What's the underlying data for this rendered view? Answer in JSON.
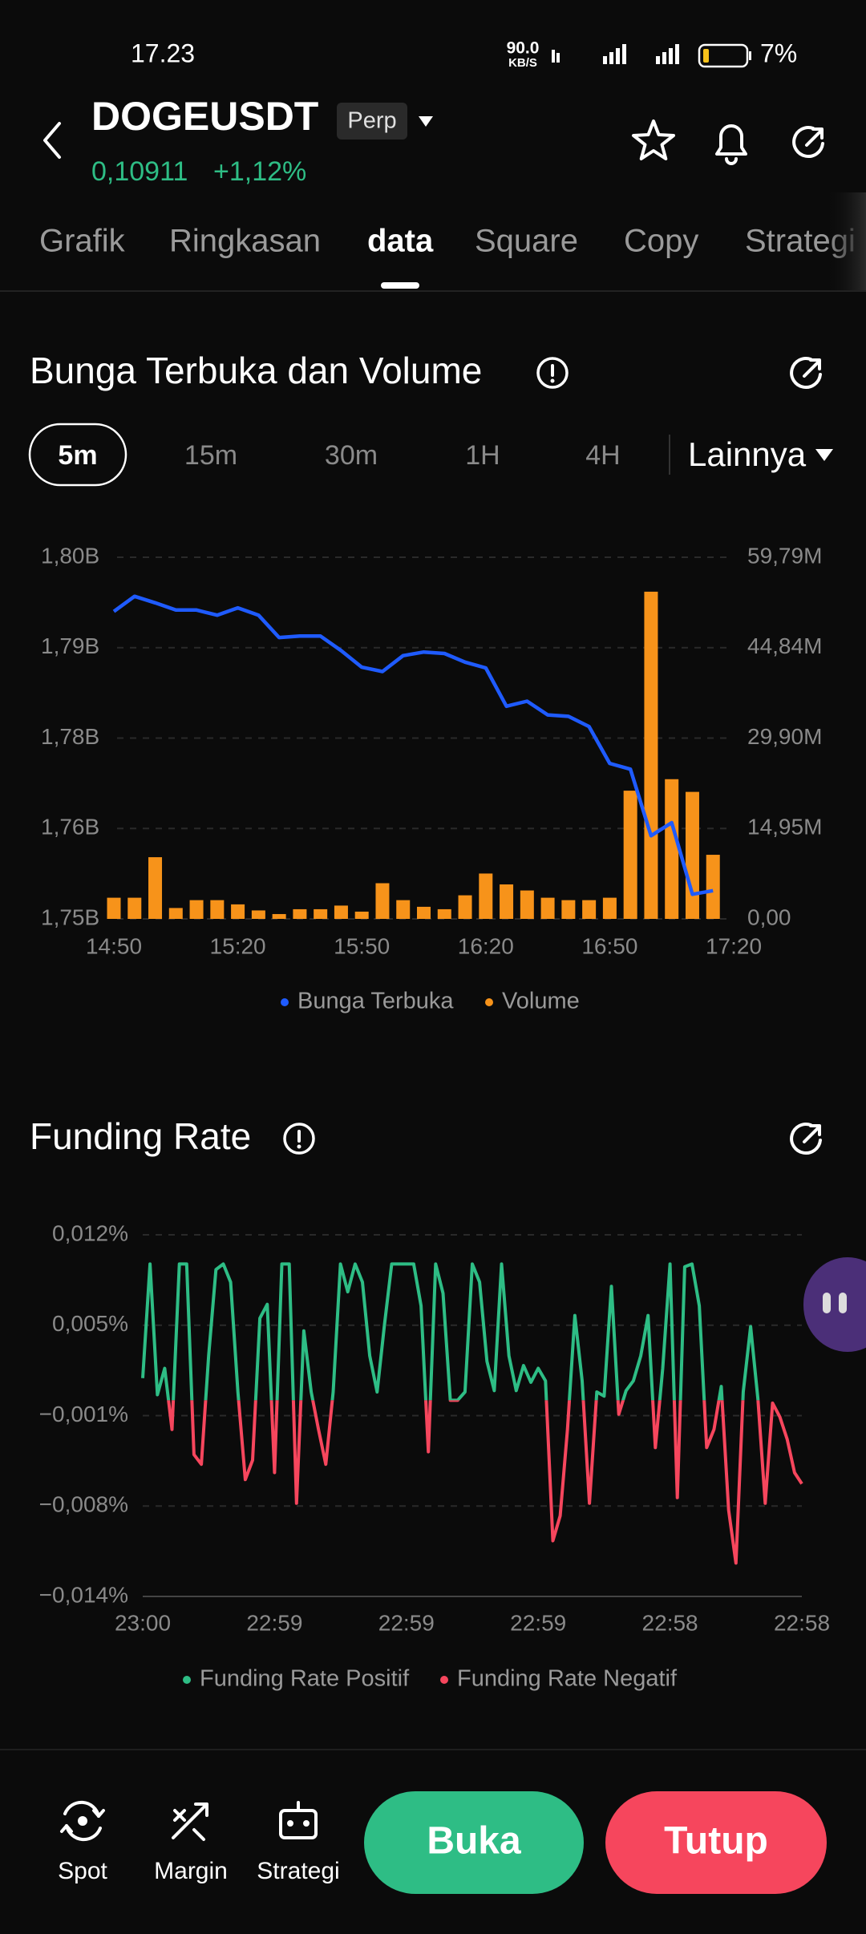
{
  "status_bar": {
    "time": "17.23",
    "net_speed": "90.0",
    "net_unit": "KB/S",
    "battery": "7%"
  },
  "header": {
    "symbol": "DOGEUSDT",
    "contract": "Perp",
    "price": "0,10911",
    "change": "+1,12%"
  },
  "tabs": [
    "Grafik",
    "Ringkasan",
    "data",
    "Square",
    "Copy",
    "Strategi"
  ],
  "intervals": {
    "options": [
      "5m",
      "15m",
      "30m",
      "1H",
      "4H"
    ],
    "more": "Lainnya"
  },
  "chart_data": [
    {
      "type": "combo",
      "title": "Bunga Terbuka dan Volume",
      "categories": [
        "14:50",
        null,
        null,
        null,
        null,
        null,
        "15:20",
        null,
        null,
        null,
        null,
        null,
        "15:50",
        null,
        null,
        null,
        null,
        null,
        "16:20",
        null,
        null,
        null,
        null,
        null,
        "16:50",
        null,
        null,
        null,
        null,
        null,
        "17:20"
      ],
      "series": [
        {
          "name": "Bunga Terbuka",
          "type": "line",
          "color": "#1f5bff",
          "values": [
            1.7935,
            1.7956,
            1.7947,
            1.7937,
            1.7937,
            1.793,
            1.794,
            1.793,
            1.7899,
            1.7901,
            1.7901,
            1.7881,
            1.7858,
            1.7852,
            1.7874,
            1.7879,
            1.7877,
            1.7865,
            1.7857,
            1.7804,
            1.7811,
            1.7792,
            1.779,
            1.7776,
            1.7725,
            1.7717,
            1.7625,
            1.7643,
            1.7544,
            1.7549,
            null
          ]
        },
        {
          "name": "Volume",
          "type": "bar",
          "axis": "y2",
          "color": "#f7931a",
          "values": [
            3.5,
            3.5,
            10.2,
            1.8,
            3.1,
            3.1,
            2.4,
            1.4,
            0.8,
            1.6,
            1.6,
            2.2,
            1.2,
            5.9,
            3.1,
            2.0,
            1.6,
            3.9,
            7.5,
            5.7,
            4.7,
            3.5,
            3.1,
            3.1,
            3.5,
            21.2,
            54.1,
            23.1,
            21.0,
            10.6,
            null
          ]
        }
      ],
      "ylim": [
        1.751,
        1.801
      ],
      "yticks": [
        {
          "value": 1.801,
          "label": "1,80B"
        },
        {
          "value": 1.7885,
          "label": "1,79B"
        },
        {
          "value": 1.776,
          "label": "1,78B"
        },
        {
          "value": 1.7635,
          "label": "1,76B"
        },
        {
          "value": 1.751,
          "label": "1,75B"
        }
      ],
      "y2lim": [
        0,
        59.792
      ],
      "y2ticks": [
        {
          "value": 59.792,
          "label": "59,79M"
        },
        {
          "value": 44.844,
          "label": "44,84M"
        },
        {
          "value": 29.896,
          "label": "29,90M"
        },
        {
          "value": 14.948,
          "label": "14,95M"
        },
        {
          "value": 0,
          "label": "0,00"
        }
      ],
      "grid": true,
      "legend": "bottom"
    },
    {
      "type": "line",
      "title": "Funding Rate",
      "categories": [
        "23:00",
        null,
        null,
        null,
        null,
        null,
        null,
        null,
        null,
        null,
        null,
        null,
        null,
        null,
        null,
        null,
        null,
        null,
        "22:59",
        null,
        null,
        null,
        null,
        null,
        null,
        null,
        null,
        null,
        null,
        null,
        null,
        null,
        null,
        null,
        null,
        null,
        "22:59",
        null,
        null,
        null,
        null,
        null,
        null,
        null,
        null,
        null,
        null,
        null,
        null,
        null,
        null,
        null,
        null,
        null,
        "22:59",
        null,
        null,
        null,
        null,
        null,
        null,
        null,
        null,
        null,
        null,
        null,
        null,
        null,
        null,
        null,
        null,
        null,
        "22:58",
        null,
        null,
        null,
        null,
        null,
        null,
        null,
        null,
        null,
        null,
        null,
        null,
        null,
        null,
        null,
        null,
        null,
        "22:58"
      ],
      "values": [
        0.0016,
        0.0098,
        0.0004,
        0.0023,
        -0.0021,
        0.0098,
        0.0098,
        -0.0039,
        -0.0046,
        0.0032,
        0.0094,
        0.0098,
        0.0085,
        0.0006,
        -0.0057,
        -0.0043,
        0.0059,
        0.0069,
        -0.0052,
        0.0098,
        0.0098,
        -0.0074,
        0.005,
        0.0006,
        -0.0021,
        -0.0046,
        0.0006,
        0.0098,
        0.0078,
        0.0098,
        0.0085,
        0.0032,
        0.0006,
        0.0054,
        0.0098,
        0.0098,
        0.0098,
        0.0098,
        0.0068,
        -0.0037,
        0.0098,
        0.0077,
        0.0,
        0.0,
        0.0006,
        0.0098,
        0.0085,
        0.0028,
        0.0007,
        0.0098,
        0.0032,
        0.0007,
        0.0025,
        0.0013,
        0.0023,
        0.0014,
        -0.0101,
        -0.0083,
        -0.0021,
        0.0061,
        0.0014,
        -0.0074,
        0.0006,
        0.0003,
        0.0082,
        -0.001,
        0.0007,
        0.0014,
        0.0032,
        0.0061,
        -0.0034,
        0.0023,
        0.0098,
        -0.007,
        0.0096,
        0.0098,
        0.0068,
        -0.0034,
        -0.0021,
        0.001,
        -0.0079,
        -0.0117,
        0.0006,
        0.0053,
        0.0001,
        -0.0074,
        -0.0002,
        -0.0012,
        -0.0028,
        -0.0052,
        -0.006
      ],
      "series": [
        {
          "name": "Funding Rate Positif",
          "color": "#2ebd85"
        },
        {
          "name": "Funding Rate Negatif",
          "color": "#f6465d"
        }
      ],
      "ylim": [
        -0.0141,
        0.0119
      ],
      "yticks": [
        {
          "value": 0.0119,
          "label": "0,012%"
        },
        {
          "value": 0.0054,
          "label": "0,005%"
        },
        {
          "value": -0.0011,
          "label": "−0,001%"
        },
        {
          "value": -0.0076,
          "label": "−0,008%"
        },
        {
          "value": -0.0141,
          "label": "−0,014%"
        }
      ],
      "grid": true,
      "legend": "bottom"
    }
  ],
  "bottom_bar": {
    "shortcuts": [
      "Spot",
      "Margin",
      "Strategi"
    ],
    "buttons": [
      "Buka",
      "Tutup"
    ]
  }
}
